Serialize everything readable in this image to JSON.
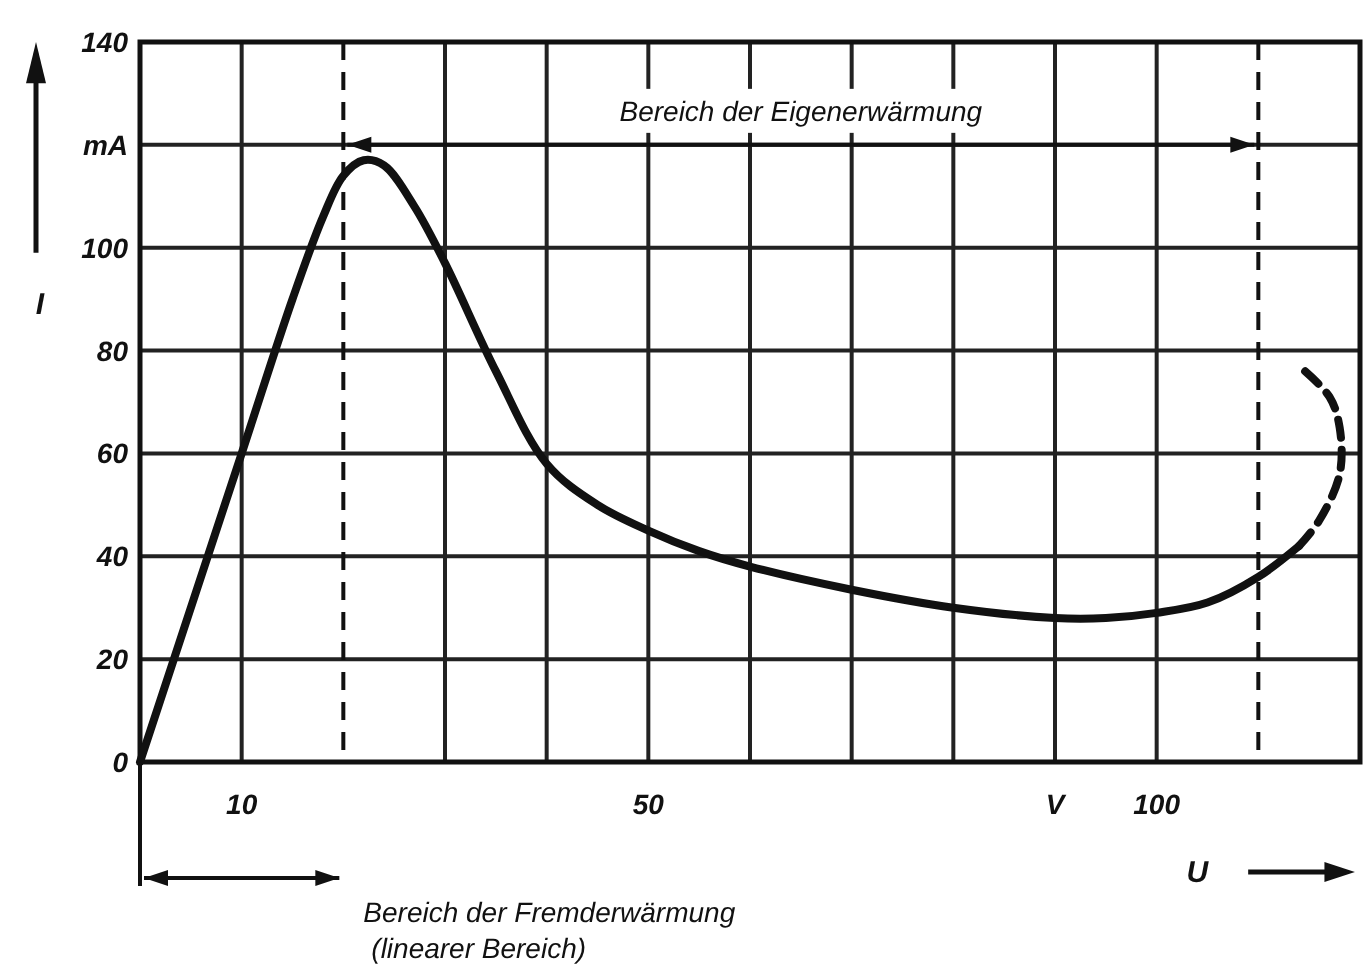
{
  "chart_data": {
    "type": "line",
    "xlabel": "U",
    "ylabel": "I",
    "xlim": [
      0,
      120
    ],
    "xticks": [
      {
        "value": 10,
        "label": "10"
      },
      {
        "value": 30,
        "label": null
      },
      {
        "value": 40,
        "label": null
      },
      {
        "value": 50,
        "label": "50"
      },
      {
        "value": 60,
        "label": null
      },
      {
        "value": 70,
        "label": null
      },
      {
        "value": 80,
        "label": null
      },
      {
        "value": 90,
        "label": "V"
      },
      {
        "value": 100,
        "label": "100"
      }
    ],
    "ylim": [
      0,
      140
    ],
    "yticks": [
      0,
      20,
      40,
      60,
      80,
      100,
      {
        "value": 120,
        "label": "mA"
      },
      140
    ],
    "grid": true,
    "series": [
      {
        "color": "#111111",
        "line_style": "solid",
        "x": [
          0,
          10,
          15,
          18,
          20,
          22,
          24,
          27,
          30,
          35,
          40,
          45,
          50,
          55,
          60,
          70,
          80,
          90,
          95,
          100,
          105,
          110,
          114
        ],
        "values": [
          0,
          60,
          90,
          106,
          114,
          117,
          116,
          108,
          97,
          76,
          58,
          50,
          45,
          41,
          38,
          33.5,
          30,
          28,
          28,
          29,
          31,
          36,
          42
        ]
      },
      {
        "color": "#111111",
        "line_style": "dashed",
        "x": [
          114,
          116,
          118,
          118,
          117,
          114
        ],
        "values": [
          42,
          47,
          56,
          65,
          71,
          77
        ]
      }
    ],
    "ref_lines": [
      {
        "axis": "x",
        "value": 20,
        "line_style": "dashed"
      },
      {
        "axis": "x",
        "value": 110,
        "line_style": "dashed"
      }
    ],
    "annotations": [
      "Bereich der Eigenerwärmung",
      "Bereich der Fremderwärmung\n(linearer Bereich)"
    ]
  }
}
